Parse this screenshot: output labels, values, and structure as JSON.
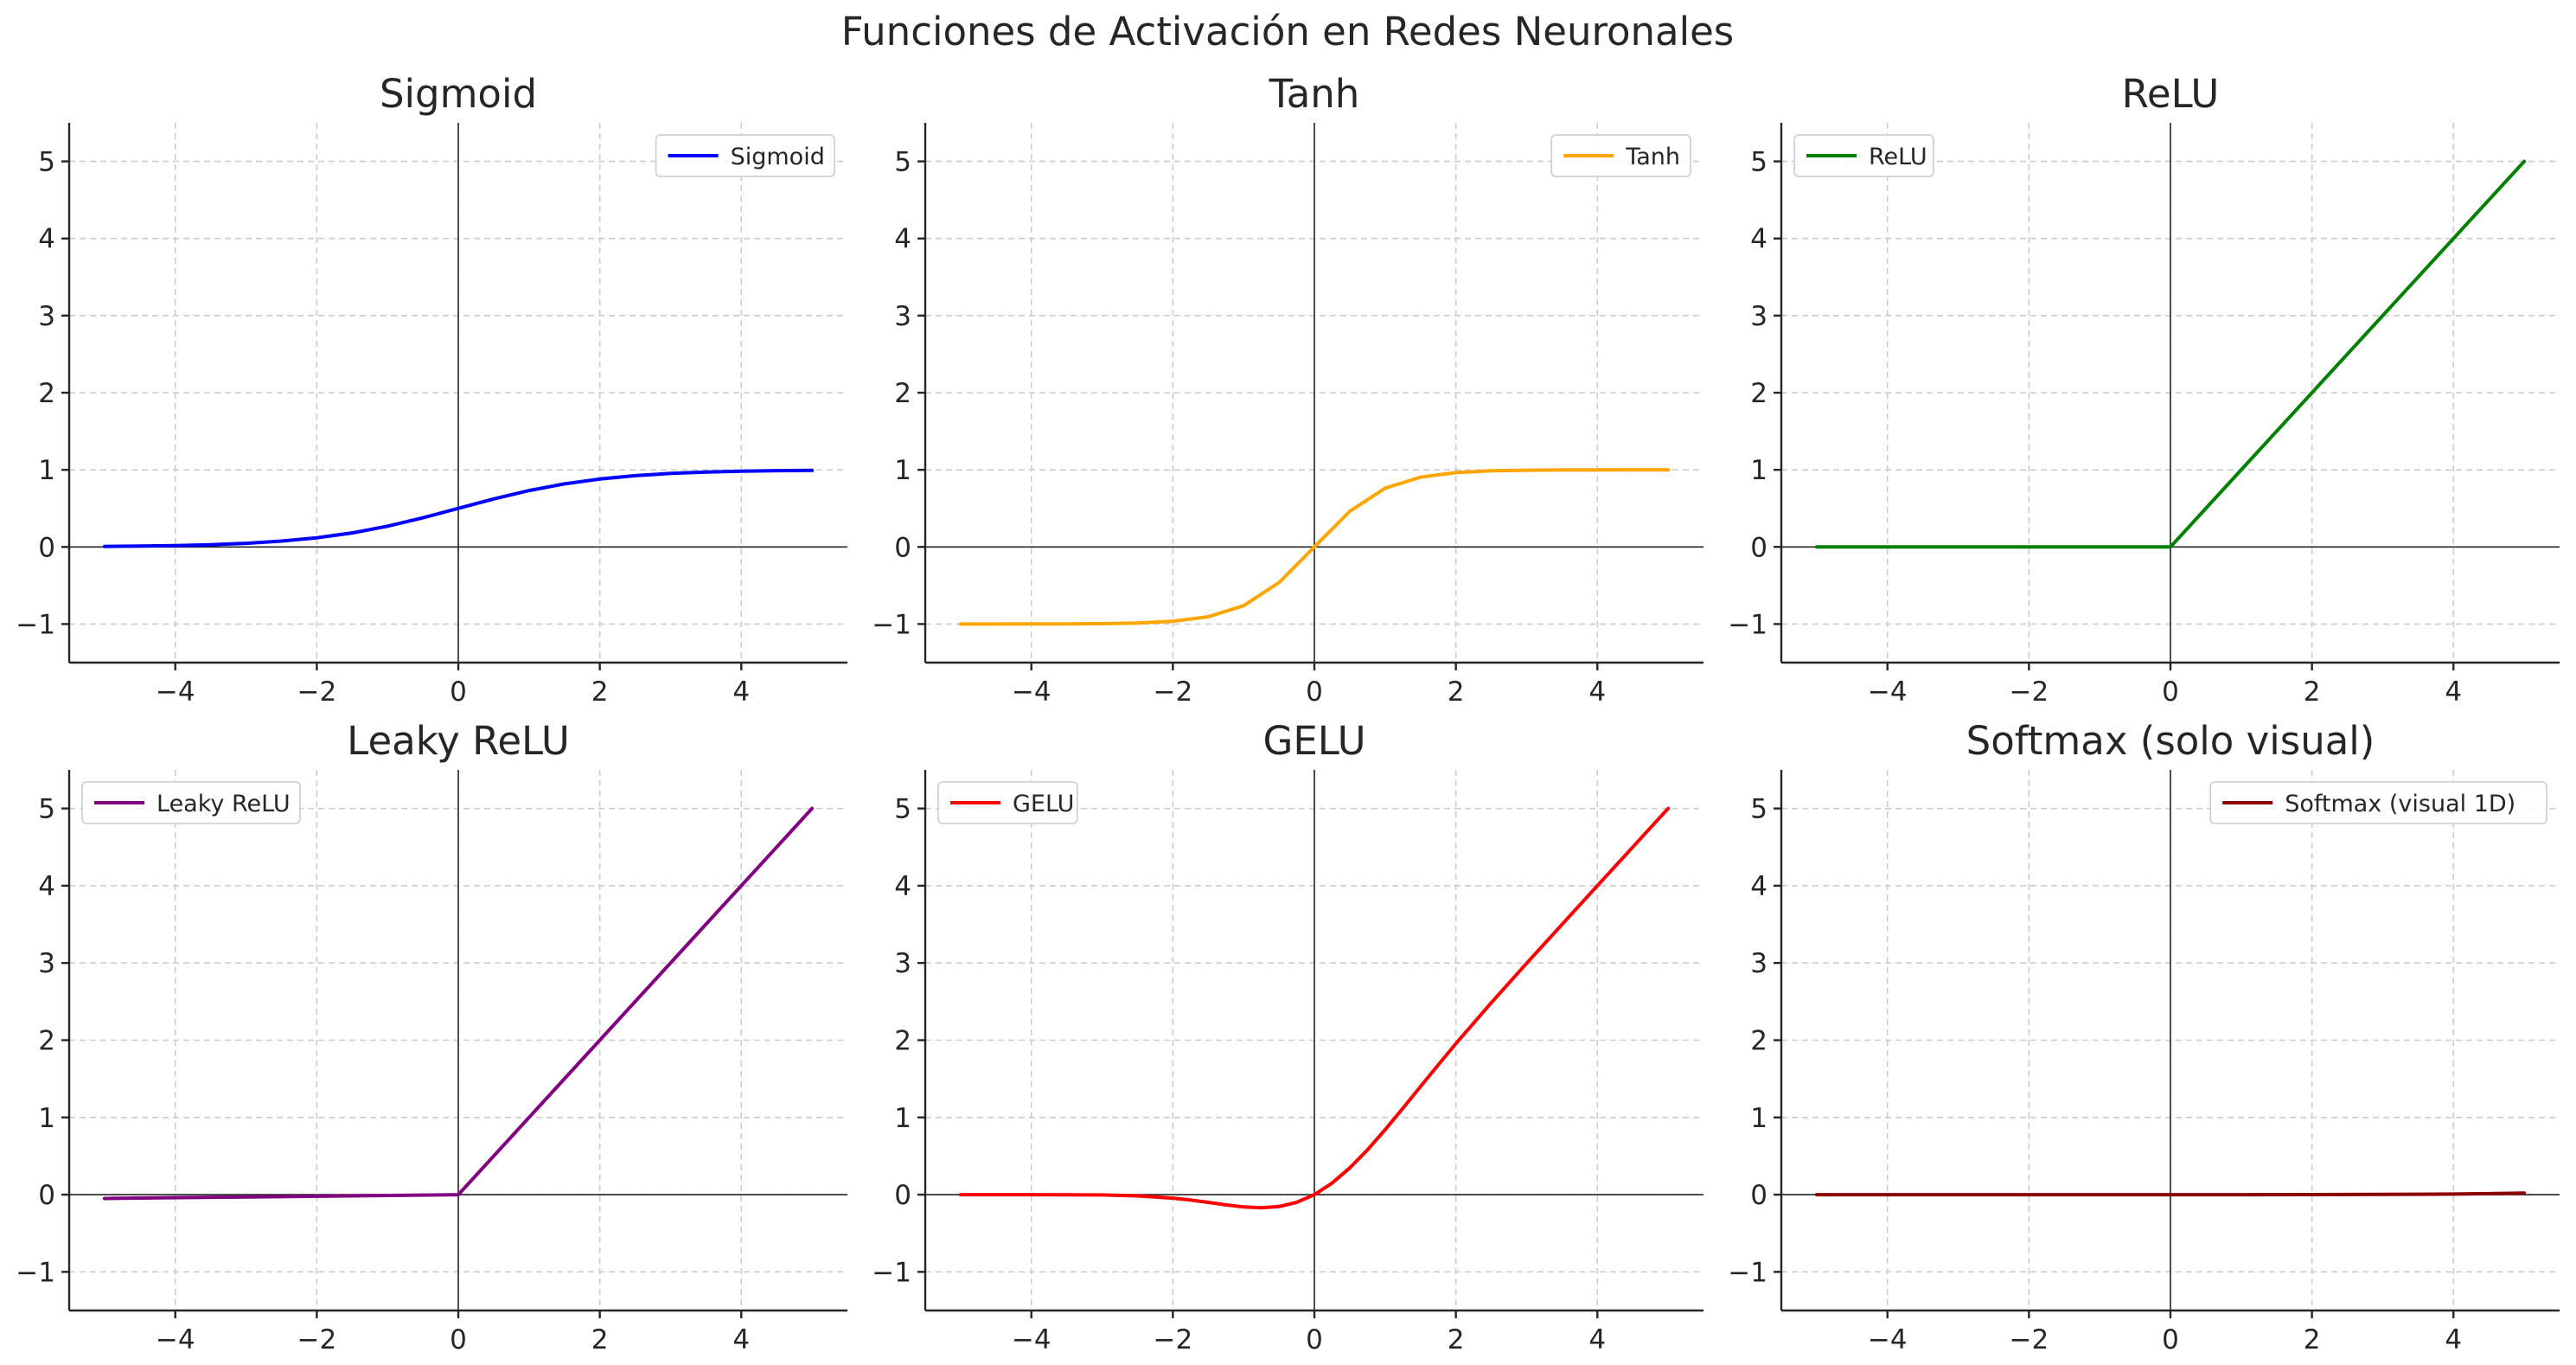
{
  "figure": {
    "suptitle": "Funciones de Activación en Redes Neuronales"
  },
  "chart_data": [
    {
      "type": "line",
      "title": "Sigmoid",
      "xlim": [
        -5.5,
        5.5
      ],
      "ylim": [
        -1.5,
        5.5
      ],
      "xticks": [
        -4,
        -2,
        0,
        2,
        4
      ],
      "yticks": [
        -1,
        0,
        1,
        2,
        3,
        4,
        5
      ],
      "grid": true,
      "legend_position": "upper right",
      "series": [
        {
          "name": "Sigmoid",
          "color": "#0000ff",
          "x": [
            -5,
            -4.5,
            -4,
            -3.5,
            -3,
            -2.5,
            -2,
            -1.5,
            -1,
            -0.5,
            0,
            0.5,
            1,
            1.5,
            2,
            2.5,
            3,
            3.5,
            4,
            4.5,
            5
          ],
          "y": [
            0.007,
            0.011,
            0.018,
            0.029,
            0.047,
            0.076,
            0.119,
            0.182,
            0.269,
            0.378,
            0.5,
            0.622,
            0.731,
            0.818,
            0.881,
            0.924,
            0.953,
            0.971,
            0.982,
            0.989,
            0.993
          ]
        }
      ]
    },
    {
      "type": "line",
      "title": "Tanh",
      "xlim": [
        -5.5,
        5.5
      ],
      "ylim": [
        -1.5,
        5.5
      ],
      "xticks": [
        -4,
        -2,
        0,
        2,
        4
      ],
      "yticks": [
        -1,
        0,
        1,
        2,
        3,
        4,
        5
      ],
      "grid": true,
      "legend_position": "upper right",
      "series": [
        {
          "name": "Tanh",
          "color": "#ffa500",
          "x": [
            -5,
            -4.5,
            -4,
            -3.5,
            -3,
            -2.5,
            -2,
            -1.5,
            -1,
            -0.5,
            0,
            0.5,
            1,
            1.5,
            2,
            2.5,
            3,
            3.5,
            4,
            4.5,
            5
          ],
          "y": [
            -1.0,
            -1.0,
            -0.999,
            -0.998,
            -0.995,
            -0.987,
            -0.964,
            -0.905,
            -0.762,
            -0.462,
            0,
            0.462,
            0.762,
            0.905,
            0.964,
            0.987,
            0.995,
            0.998,
            0.999,
            1.0,
            1.0
          ]
        }
      ]
    },
    {
      "type": "line",
      "title": "ReLU",
      "xlim": [
        -5.5,
        5.5
      ],
      "ylim": [
        -1.5,
        5.5
      ],
      "xticks": [
        -4,
        -2,
        0,
        2,
        4
      ],
      "yticks": [
        -1,
        0,
        1,
        2,
        3,
        4,
        5
      ],
      "grid": true,
      "legend_position": "upper left",
      "series": [
        {
          "name": "ReLU",
          "color": "#008000",
          "x": [
            -5,
            0,
            5
          ],
          "y": [
            0,
            0,
            5
          ]
        }
      ]
    },
    {
      "type": "line",
      "title": "Leaky ReLU",
      "xlim": [
        -5.5,
        5.5
      ],
      "ylim": [
        -1.5,
        5.5
      ],
      "xticks": [
        -4,
        -2,
        0,
        2,
        4
      ],
      "yticks": [
        -1,
        0,
        1,
        2,
        3,
        4,
        5
      ],
      "grid": true,
      "legend_position": "upper left",
      "series": [
        {
          "name": "Leaky ReLU",
          "color": "#800080",
          "x": [
            -5,
            0,
            5
          ],
          "y": [
            -0.05,
            0,
            5
          ]
        }
      ]
    },
    {
      "type": "line",
      "title": "GELU",
      "xlim": [
        -5.5,
        5.5
      ],
      "ylim": [
        -1.5,
        5.5
      ],
      "xticks": [
        -4,
        -2,
        0,
        2,
        4
      ],
      "yticks": [
        -1,
        0,
        1,
        2,
        3,
        4,
        5
      ],
      "grid": true,
      "legend_position": "upper left",
      "series": [
        {
          "name": "GELU",
          "color": "#ff0000",
          "x": [
            -5,
            -4.5,
            -4,
            -3.5,
            -3,
            -2.5,
            -2,
            -1.75,
            -1.5,
            -1.25,
            -1,
            -0.75,
            -0.5,
            -0.25,
            0,
            0.25,
            0.5,
            0.75,
            1,
            1.25,
            1.5,
            1.75,
            2,
            2.5,
            3,
            3.5,
            4,
            4.5,
            5
          ],
          "y": [
            0,
            0,
            0,
            -0.001,
            -0.004,
            -0.016,
            -0.045,
            -0.07,
            -0.1,
            -0.132,
            -0.159,
            -0.17,
            -0.154,
            -0.1,
            0,
            0.15,
            0.346,
            0.58,
            0.841,
            1.118,
            1.4,
            1.68,
            1.955,
            2.484,
            2.996,
            3.499,
            4.0,
            4.5,
            5.0
          ]
        }
      ]
    },
    {
      "type": "line",
      "title": "Softmax (solo visual)",
      "xlim": [
        -5.5,
        5.5
      ],
      "ylim": [
        -1.5,
        5.5
      ],
      "xticks": [
        -4,
        -2,
        0,
        2,
        4
      ],
      "yticks": [
        -1,
        0,
        1,
        2,
        3,
        4,
        5
      ],
      "grid": true,
      "legend_position": "upper right",
      "series": [
        {
          "name": "Softmax (visual 1D)",
          "color": "#8b0000",
          "x": [
            -5,
            -4,
            -3,
            -2,
            -1,
            0,
            1,
            2,
            3,
            3.5,
            4,
            4.5,
            5
          ],
          "y": [
            0,
            0,
            0,
            0,
            0,
            0,
            0,
            0.001,
            0.003,
            0.005,
            0.008,
            0.013,
            0.021
          ]
        }
      ]
    }
  ]
}
